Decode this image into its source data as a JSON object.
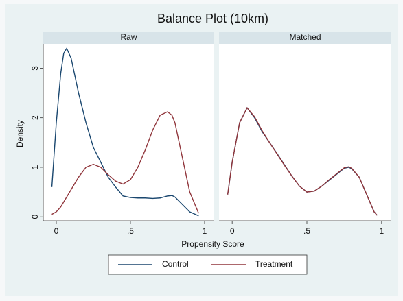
{
  "chart_data": {
    "type": "line",
    "title": "Balance Plot (10km)",
    "xlabel": "Propensity Score",
    "ylabel": "Density",
    "legend": [
      "Control",
      "Treatment"
    ],
    "colors": [
      "#1a476f",
      "#90353b"
    ],
    "xlim": [
      -0.088,
      1.065
    ],
    "xticks": [
      0,
      {
        "value": 0.5,
        "label": ".5"
      },
      1
    ],
    "ylim": [
      -0.08,
      3.49
    ],
    "yticks": [
      0,
      1,
      2,
      3
    ],
    "panels": [
      {
        "title": "Raw",
        "x": [
          -0.03,
          0,
          0.03,
          0.05,
          0.07,
          0.1,
          0.15,
          0.2,
          0.25,
          0.3,
          0.35,
          0.4,
          0.45,
          0.5,
          0.55,
          0.6,
          0.65,
          0.7,
          0.75,
          0.78,
          0.8,
          0.85,
          0.9,
          0.96
        ],
        "series": [
          {
            "values": [
              0.6,
              1.9,
              2.9,
              3.3,
              3.4,
              3.2,
              2.5,
              1.9,
              1.4,
              1.1,
              0.8,
              0.6,
              0.42,
              0.39,
              0.38,
              0.38,
              0.37,
              0.38,
              0.42,
              0.43,
              0.4,
              0.25,
              0.1,
              0.02
            ]
          },
          {
            "values": [
              0.05,
              0.1,
              0.2,
              0.3,
              0.4,
              0.55,
              0.8,
              1.0,
              1.06,
              1.0,
              0.85,
              0.72,
              0.66,
              0.75,
              1.0,
              1.35,
              1.75,
              2.05,
              2.12,
              2.05,
              1.9,
              1.2,
              0.5,
              0.07
            ]
          }
        ]
      },
      {
        "title": "Matched",
        "x": [
          -0.03,
          0,
          0.05,
          0.1,
          0.15,
          0.2,
          0.25,
          0.3,
          0.35,
          0.4,
          0.45,
          0.5,
          0.55,
          0.6,
          0.65,
          0.7,
          0.75,
          0.78,
          0.8,
          0.85,
          0.9,
          0.95,
          0.97
        ],
        "series": [
          {
            "values": [
              0.45,
              1.1,
              1.9,
              2.2,
              2.0,
              1.72,
              1.5,
              1.28,
              1.05,
              0.82,
              0.62,
              0.5,
              0.52,
              0.62,
              0.74,
              0.86,
              0.98,
              1.0,
              0.97,
              0.8,
              0.45,
              0.1,
              0.03
            ]
          },
          {
            "values": [
              0.45,
              1.1,
              1.9,
              2.2,
              2.02,
              1.74,
              1.5,
              1.27,
              1.04,
              0.82,
              0.62,
              0.5,
              0.52,
              0.62,
              0.75,
              0.87,
              0.99,
              1.01,
              0.98,
              0.8,
              0.45,
              0.1,
              0.03
            ]
          }
        ]
      }
    ]
  }
}
